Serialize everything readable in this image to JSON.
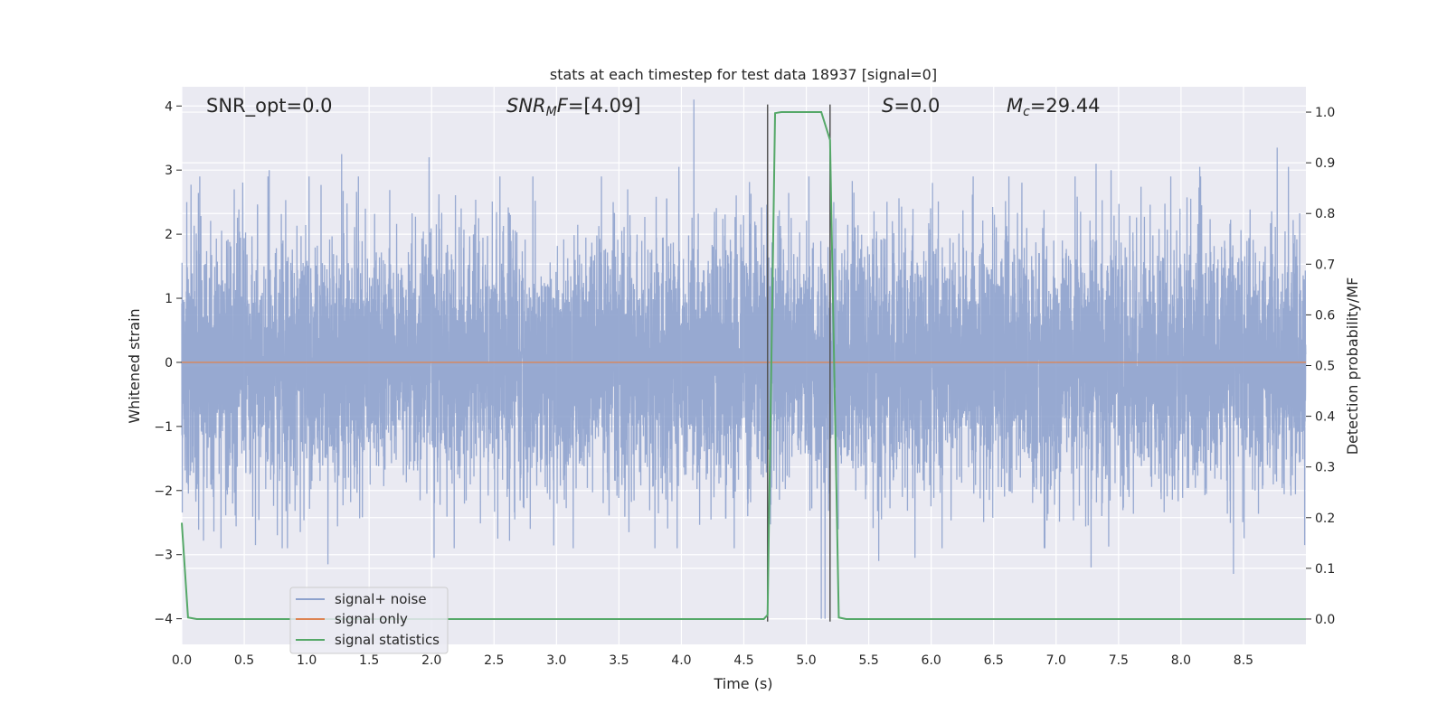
{
  "chart_data": {
    "type": "line",
    "title": "stats at each timestep for test data 18937 [signal=0]",
    "xlabel": "Time (s)",
    "ylabel": "Whitened strain",
    "ylabel_right": "Detection probability/MF",
    "xlim": [
      0.0,
      9.0
    ],
    "ylim": [
      -4.4,
      4.3
    ],
    "ylim_right": [
      -0.05,
      1.05
    ],
    "x_ticks": [
      "0.0",
      "0.5",
      "1.0",
      "1.5",
      "2.0",
      "2.5",
      "3.0",
      "3.5",
      "4.0",
      "4.5",
      "5.0",
      "5.5",
      "6.0",
      "6.5",
      "7.0",
      "7.5",
      "8.0",
      "8.5"
    ],
    "y_ticks": [
      "4",
      "3",
      "2",
      "1",
      "0",
      "−1",
      "−2",
      "−3",
      "−4"
    ],
    "y_ticks_right": [
      "1.0",
      "0.9",
      "0.8",
      "0.7",
      "0.6",
      "0.5",
      "0.4",
      "0.3",
      "0.2",
      "0.1",
      "0.0"
    ],
    "grid": true,
    "legend_position": "lower-left",
    "annotations": {
      "snr_opt": "SNR_opt=0.0",
      "snr_mf": "=[4.09]",
      "snr_mf_symbol": "SNR",
      "snr_mf_sub": "M",
      "snr_mf_tail": "F",
      "s_value": "=0.0",
      "s_symbol": "S",
      "mc_value": "=29.44",
      "mc_symbol": "M",
      "mc_sub": "c"
    },
    "markers_x": [
      4.69,
      5.19
    ],
    "series": [
      {
        "name": "signal+ noise",
        "color": "#8ea2cd",
        "axis": "left",
        "kind": "noise",
        "sample_rate": 1000,
        "envelope_peaks": [
          [
            0.04,
            2.5
          ],
          [
            0.42,
            2.7
          ],
          [
            0.7,
            3.0
          ],
          [
            1.28,
            3.25
          ],
          [
            1.98,
            3.2
          ],
          [
            2.63,
            2.3
          ],
          [
            3.57,
            2.7
          ],
          [
            3.98,
            3.05
          ],
          [
            4.1,
            4.1
          ],
          [
            5.22,
            2.5
          ],
          [
            6.01,
            2.8
          ],
          [
            7.32,
            3.1
          ],
          [
            7.44,
            3.0
          ],
          [
            8.15,
            3.05
          ],
          [
            8.77,
            3.35
          ],
          [
            8.86,
            3.05
          ]
        ],
        "envelope_troughs": [
          [
            0.05,
            -1.9
          ],
          [
            0.59,
            -2.85
          ],
          [
            1.17,
            -3.15
          ],
          [
            2.02,
            -3.05
          ],
          [
            2.53,
            -2.75
          ],
          [
            3.58,
            -2.65
          ],
          [
            5.12,
            -4.0
          ],
          [
            5.15,
            -4.0
          ],
          [
            5.58,
            -3.1
          ],
          [
            5.87,
            -3.05
          ],
          [
            7.28,
            -3.2
          ],
          [
            8.42,
            -3.3
          ],
          [
            8.99,
            -2.85
          ]
        ]
      },
      {
        "name": "signal only",
        "color": "#dd8452",
        "axis": "left",
        "x": [
          0.0,
          9.0
        ],
        "y": [
          0.0,
          0.0
        ]
      },
      {
        "name": "signal statistics",
        "color": "#55a868",
        "axis": "right",
        "x": [
          0.0,
          0.05,
          0.12,
          4.55,
          4.66,
          4.69,
          4.75,
          4.8,
          5.0,
          5.12,
          5.19,
          5.26,
          5.32,
          9.0
        ],
        "y": [
          0.19,
          0.003,
          0.0,
          0.0,
          0.0,
          0.008,
          0.998,
          1.0,
          1.0,
          1.0,
          0.945,
          0.003,
          0.0,
          0.0
        ]
      }
    ]
  }
}
